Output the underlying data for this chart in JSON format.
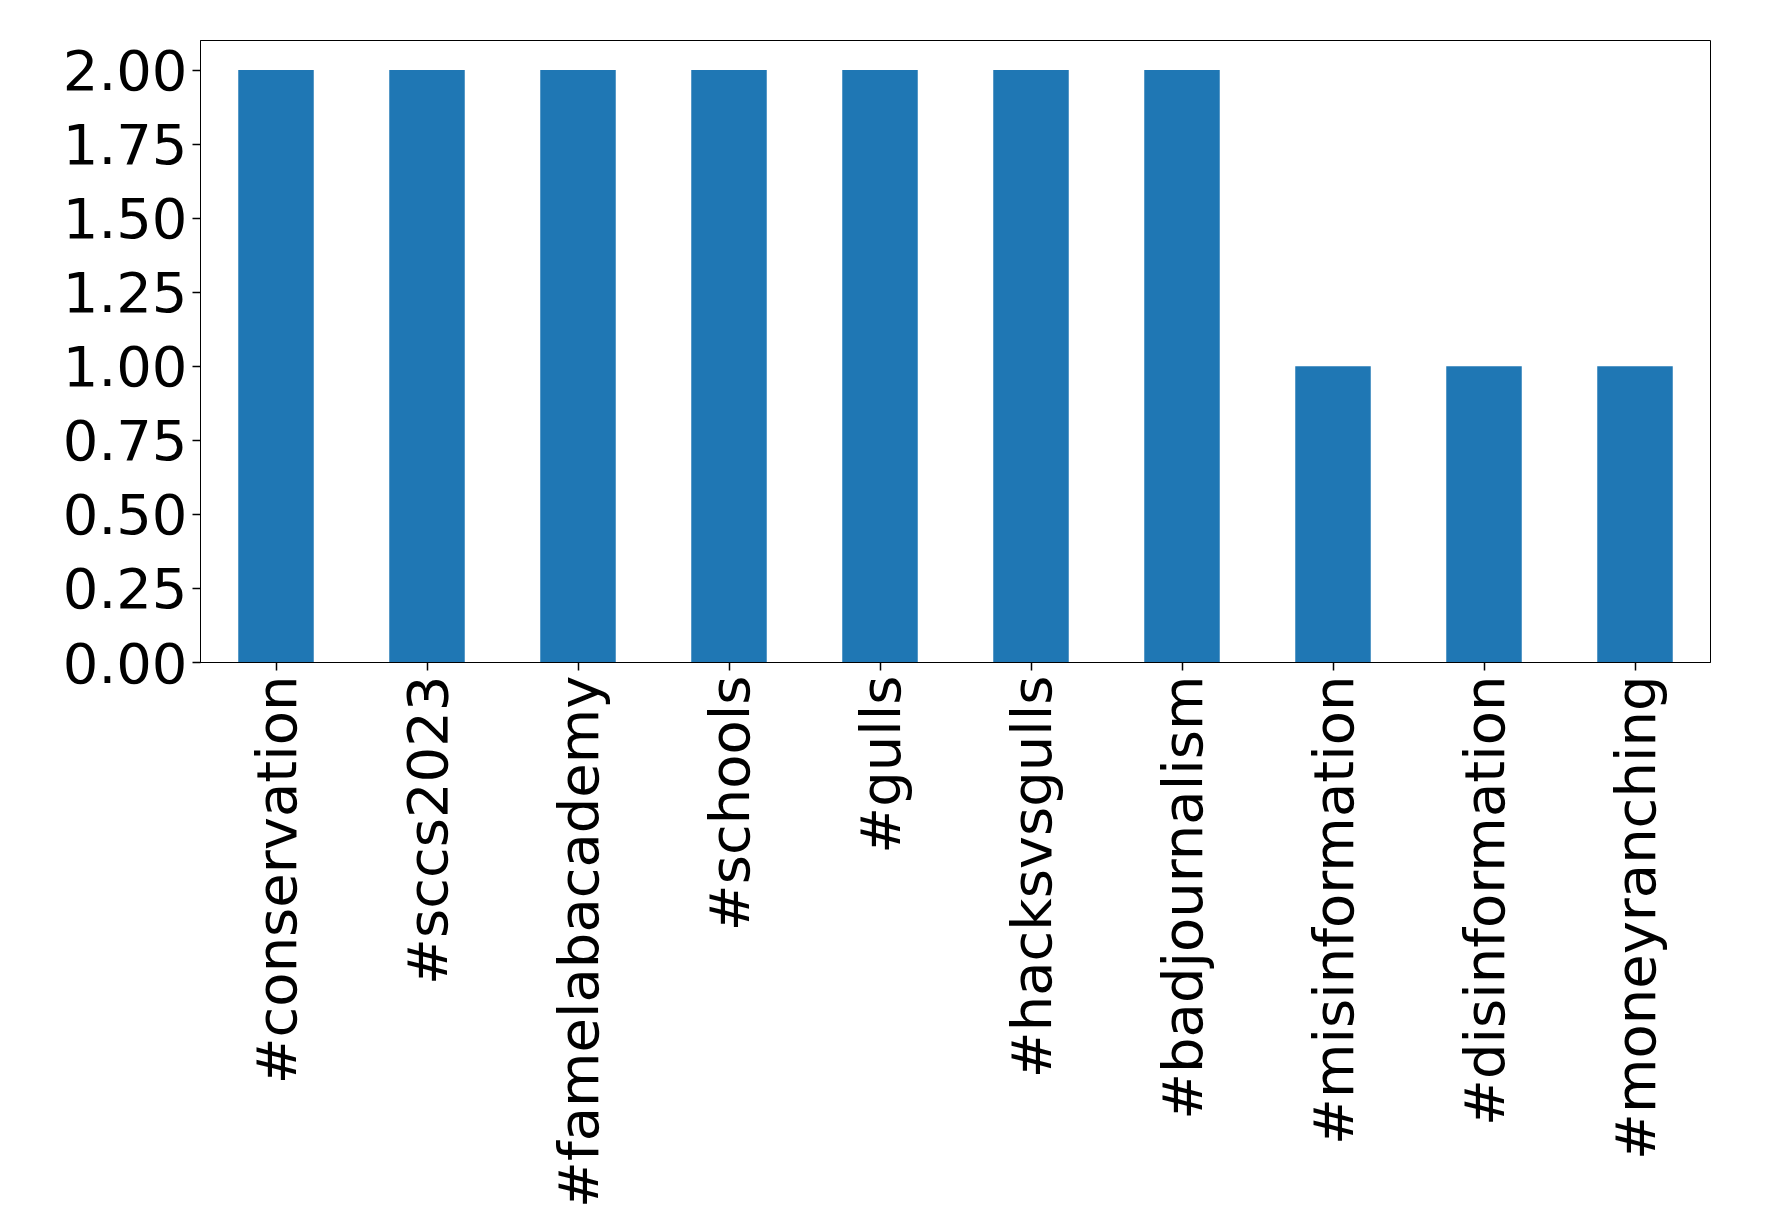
{
  "chart_data": {
    "type": "bar",
    "categories": [
      "#conservation",
      "#sccs2023",
      "#famelabacademy",
      "#schools",
      "#gulls",
      "#hacksvsgulls",
      "#badjournalism",
      "#misinformation",
      "#disinformation",
      "#moneyranching"
    ],
    "values": [
      2,
      2,
      2,
      2,
      2,
      2,
      2,
      1,
      1,
      1
    ],
    "color": "#1f77b4",
    "ylim": [
      0,
      2.1
    ],
    "yticks": [
      {
        "value": 0,
        "label": "0.00"
      },
      {
        "value": 0.25,
        "label": "0.25"
      },
      {
        "value": 0.5,
        "label": "0.50"
      },
      {
        "value": 0.75,
        "label": "0.75"
      },
      {
        "value": 1,
        "label": "1.00"
      },
      {
        "value": 1.25,
        "label": "1.25"
      },
      {
        "value": 1.5,
        "label": "1.50"
      },
      {
        "value": 1.75,
        "label": "1.75"
      },
      {
        "value": 2,
        "label": "2.00"
      }
    ],
    "grid": false
  }
}
